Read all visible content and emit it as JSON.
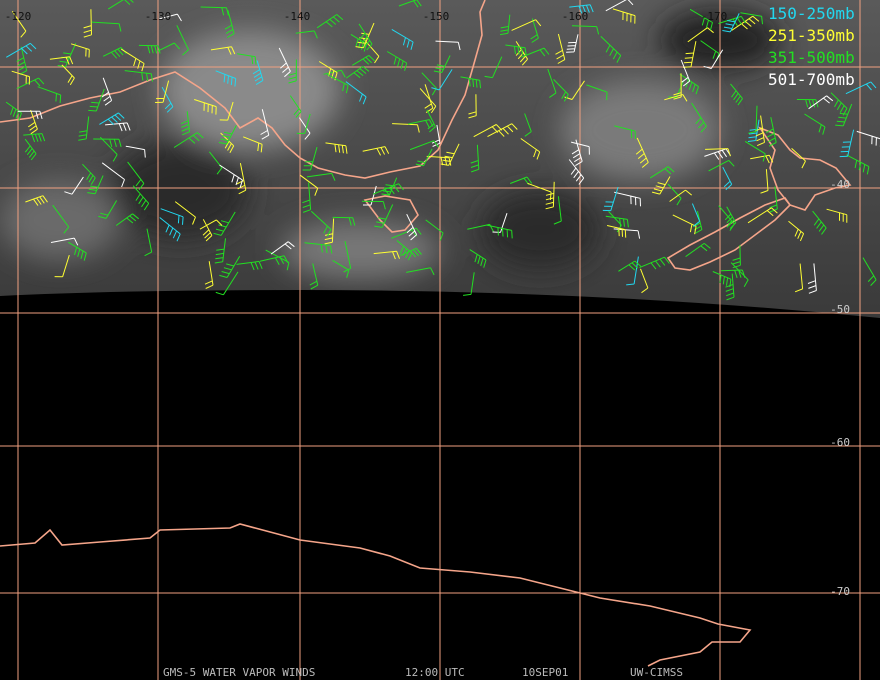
{
  "map": {
    "longitude_labels": [
      "-120",
      "-130",
      "-140",
      "-150",
      "-160",
      "-170"
    ],
    "latitude_labels": [
      "-40",
      "-50",
      "-60",
      "-70"
    ],
    "legend": [
      {
        "label": "150-250mb",
        "color": "#22d8f0"
      },
      {
        "label": "251-350mb",
        "color": "#ffff33"
      },
      {
        "label": "351-500mb",
        "color": "#22e022"
      },
      {
        "label": "501-700mb",
        "color": "#ffffff"
      }
    ],
    "footer": [
      "GMS-5 WATER VAPOR WINDS",
      "12:00 UTC",
      "10SEP01",
      "UW-CIMSS"
    ]
  }
}
